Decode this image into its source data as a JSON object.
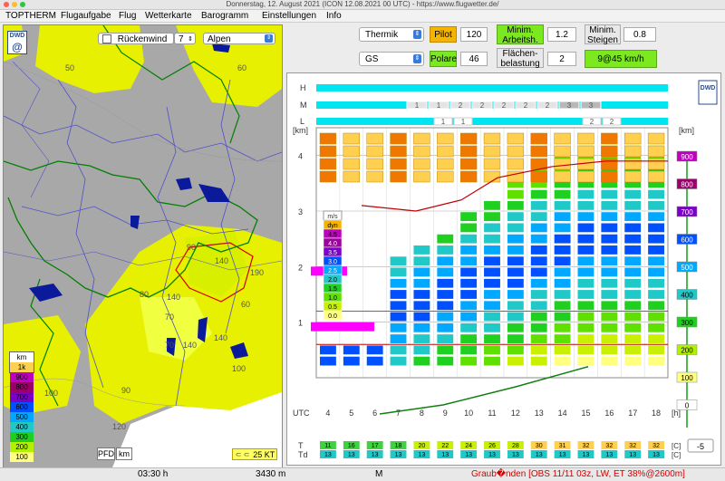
{
  "window": {
    "title": "Donnerstag, 12. August 2021 (ICON 12.08.2021 00 UTC) - https://www.flugwetter.de/"
  },
  "menu": [
    "TOPTHERM",
    "Flugaufgabe",
    "Flug",
    "Wetterkarte",
    "Barogramm",
    "Einstellungen",
    "Info"
  ],
  "map": {
    "wind_direction": "Rückenwind",
    "wind_value": "7",
    "region": "Alpen",
    "logo": "DWD",
    "contour_labels": [
      "50",
      "60",
      "90",
      "80",
      "140",
      "140",
      "70",
      "190",
      "60",
      "140",
      "70",
      "100",
      "140",
      "90",
      "100",
      "120"
    ],
    "legend_unit": "km",
    "legend": [
      {
        "label": "1k",
        "color": "#ffd050"
      },
      {
        "label": "900",
        "color": "#c000c0"
      },
      {
        "label": "800",
        "color": "#9a006a"
      },
      {
        "label": "700",
        "color": "#7a00c8"
      },
      {
        "label": "600",
        "color": "#0050ff"
      },
      {
        "label": "500",
        "color": "#00a8ff"
      },
      {
        "label": "400",
        "color": "#20c8c8"
      },
      {
        "label": "300",
        "color": "#20d020"
      },
      {
        "label": "200",
        "color": "#b0f000"
      },
      {
        "label": "100",
        "color": "#ffff80"
      }
    ],
    "pfd_label": "PFD",
    "km_label": "km",
    "scale_label": "25 KT"
  },
  "controls": {
    "mode": "Thermik",
    "glider": "GS",
    "pilot_label": "Pilot",
    "pilot_value": "120",
    "polare_label": "Polare",
    "polare_value": "46",
    "min_arbeit_label": "Minim. Arbeitsh.",
    "min_arbeit_value": "1.2",
    "flaechen_label": "Flächen-belastung",
    "flaechen_value": "2",
    "min_steigen_label": "Minim. Steigen",
    "min_steigen_value": "0.8",
    "speed_result": "9@45 km/h",
    "accent_orange": "#f5b400",
    "accent_green": "#7ce820"
  },
  "chart": {
    "logo": "DWD",
    "rows_hml": [
      "H",
      "M",
      "L"
    ],
    "m_values": [
      "1",
      "1",
      "2",
      "2",
      "2",
      "2",
      "2",
      "3",
      "3"
    ],
    "l_values": [
      "1",
      "1",
      "2",
      "2"
    ],
    "km_label": "[km]",
    "alt_ticks": [
      "4",
      "3",
      "2",
      "1"
    ],
    "utc_label": "UTC",
    "hours": [
      "4",
      "5",
      "6",
      "7",
      "8",
      "9",
      "10",
      "11",
      "12",
      "13",
      "14",
      "15",
      "16",
      "17",
      "18"
    ],
    "h_unit": "[h]",
    "right_unit": "[km]",
    "right_scale": [
      {
        "label": "900",
        "color": "#c000c0"
      },
      {
        "label": "800",
        "color": "#9a006a"
      },
      {
        "label": "700",
        "color": "#7a00c8"
      },
      {
        "label": "600",
        "color": "#0050ff"
      },
      {
        "label": "500",
        "color": "#00a8ff"
      },
      {
        "label": "400",
        "color": "#20c8c8"
      },
      {
        "label": "300",
        "color": "#20d020"
      },
      {
        "label": "200",
        "color": "#b0f000"
      },
      {
        "label": "100",
        "color": "#ffff80"
      },
      {
        "label": "0",
        "color": "#ffffff"
      }
    ],
    "lift_unit": "m/s",
    "lift_scale": [
      {
        "label": "dyn",
        "color": "#f5b400"
      },
      {
        "label": "4.5",
        "color": "#c000c0"
      },
      {
        "label": "4.0",
        "color": "#a000a0"
      },
      {
        "label": "3.5",
        "color": "#7a00c8"
      },
      {
        "label": "3.0",
        "color": "#0050ff"
      },
      {
        "label": "2.5",
        "color": "#00a8ff"
      },
      {
        "label": "2.0",
        "color": "#20c8c8"
      },
      {
        "label": "1.5",
        "color": "#20d020"
      },
      {
        "label": "1.0",
        "color": "#60e000"
      },
      {
        "label": "0.5",
        "color": "#c8f000"
      },
      {
        "label": "0.0",
        "color": "#ffff80"
      }
    ],
    "t_label": "T",
    "td_label": "Td",
    "t_values": [
      "11",
      "16",
      "17",
      "18",
      "20",
      "22",
      "24",
      "26",
      "28",
      "30",
      "31",
      "32",
      "32",
      "32",
      "32"
    ],
    "td_values": [
      "13",
      "13",
      "13",
      "13",
      "13",
      "13",
      "13",
      "13",
      "13",
      "13",
      "13",
      "13",
      "13",
      "13",
      "13"
    ],
    "unit_c": "[C]",
    "offset_value": "-5"
  },
  "status": {
    "time": "03:30 h",
    "altitude": "3430 m",
    "marker": "M",
    "location": "Graub�nden [OBS 11/11 03z, LW, ET  38%@2600m]"
  }
}
